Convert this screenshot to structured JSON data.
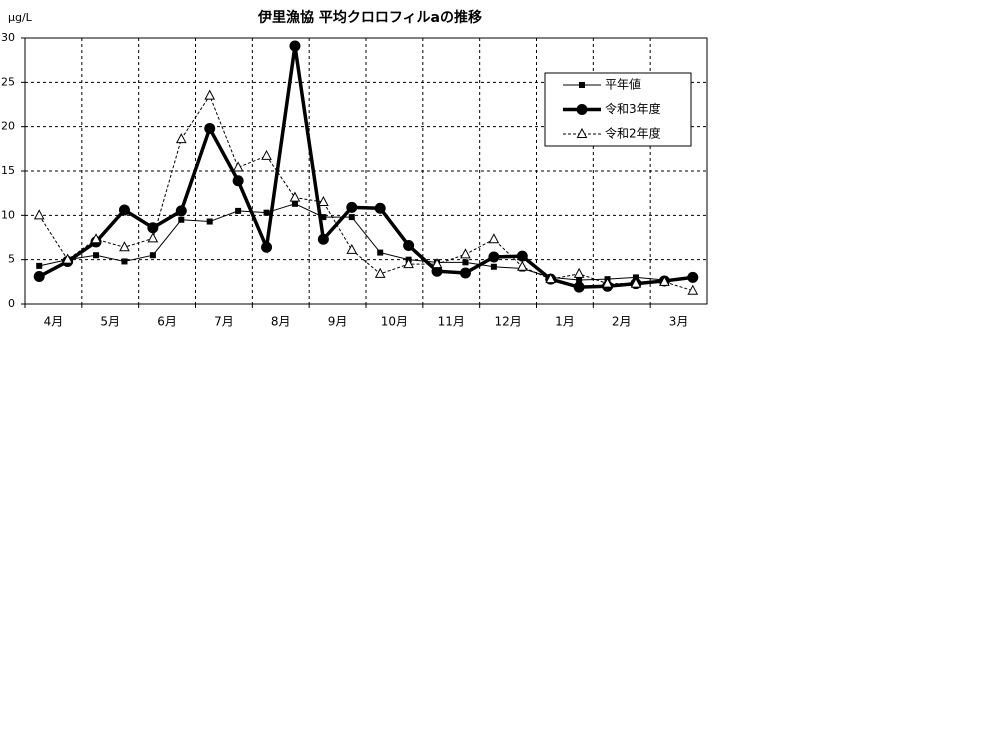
{
  "chart_data": {
    "type": "line",
    "title": "伊里漁協 平均クロロフィルaの推移",
    "y_unit": "μg/L",
    "categories": [
      "4月",
      null,
      "5月",
      null,
      "6月",
      null,
      "7月",
      null,
      "8月",
      null,
      "9月",
      null,
      "10月",
      null,
      "11月",
      null,
      "12月",
      null,
      "1月",
      null,
      "2月",
      null,
      "3月",
      null
    ],
    "series": [
      {
        "name": "平年値",
        "color": "#000000",
        "width": 1,
        "dash": "none",
        "marker": "square",
        "values": [
          4.3,
          5,
          5.5,
          4.8,
          5.5,
          9.5,
          9.3,
          10.5,
          10.3,
          11.3,
          9.8,
          9.8,
          5.8,
          5,
          4.7,
          4.7,
          4.2,
          4,
          3,
          2.7,
          2.8,
          3,
          2.7,
          3
        ]
      },
      {
        "name": "令和3年度",
        "color": "#000000",
        "width": 3.5,
        "dash": "none",
        "marker": "circle",
        "values": [
          3.1,
          4.8,
          7,
          10.6,
          8.6,
          10.5,
          19.8,
          13.9,
          6.4,
          29.1,
          7.3,
          10.9,
          10.8,
          6.6,
          3.7,
          3.5,
          5.3,
          5.4,
          2.8,
          1.9,
          2,
          2.3,
          2.6,
          3
        ]
      },
      {
        "name": "令和2年度",
        "color": "#000000",
        "width": 1,
        "dash": "3,2",
        "marker": "triangle",
        "values": [
          10,
          5,
          7.3,
          6.4,
          7.4,
          18.6,
          23.5,
          15.4,
          16.7,
          12,
          11.5,
          6.1,
          3.4,
          4.5,
          4.5,
          5.6,
          7.3,
          4.2,
          2.8,
          3.4,
          2.3,
          2.3,
          2.5,
          1.5
        ]
      }
    ],
    "ylim": [
      0,
      30
    ],
    "yticks": [
      0,
      5,
      10,
      15,
      20,
      25,
      30
    ],
    "grid": true,
    "legend": "upper right"
  }
}
